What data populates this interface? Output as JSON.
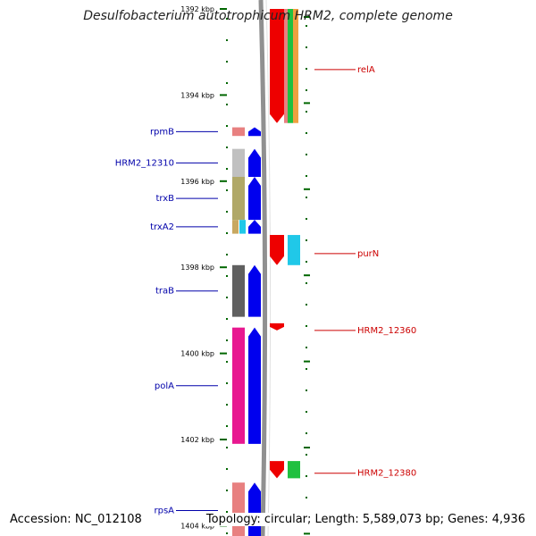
{
  "title": "Desulfobacterium autotrophicum HRM2, complete genome",
  "accession": "Accession: NC_012108",
  "topology": "Topology: circular; Length: 5,589,073 bp; Genes: 4,936",
  "ticks": [
    {
      "label": "1392 kbp",
      "kbp": 1392
    },
    {
      "label": "1394 kbp",
      "kbp": 1394
    },
    {
      "label": "1396 kbp",
      "kbp": 1396
    },
    {
      "label": "1398 kbp",
      "kbp": 1398
    },
    {
      "label": "1400 kbp",
      "kbp": 1400
    },
    {
      "label": "1402 kbp",
      "kbp": 1402
    },
    {
      "label": "1404 kbp",
      "kbp": 1404
    }
  ],
  "left_genes": [
    {
      "name": "rpmB",
      "start": 1394.75,
      "end": 1394.95,
      "box_color": "#e88080",
      "arrow_color": "#0000ee"
    },
    {
      "name": "HRM2_12310",
      "start": 1395.25,
      "end": 1395.9,
      "box_color": "#c0c0c0",
      "arrow_color": "#0000ee"
    },
    {
      "name": "trxB",
      "start": 1395.9,
      "end": 1396.9,
      "box_color": "#b0a868",
      "arrow_color": "#0000ee"
    },
    {
      "name": "trxA2",
      "start": 1396.9,
      "end": 1397.22,
      "box_color": "#c8a860",
      "box2_color": "#20c8e8",
      "arrow_color": "#0000ee"
    },
    {
      "name": "traB",
      "start": 1397.95,
      "end": 1399.15,
      "box_color": "#606060",
      "arrow_color": "#0000ee"
    },
    {
      "name": "polA",
      "start": 1399.4,
      "end": 1402.1,
      "box_color": "#e81890",
      "arrow_color": "#0000ee"
    },
    {
      "name": "rpsA",
      "start": 1403.0,
      "end": 1404.3,
      "box_color": "#e88080",
      "arrow_color": "#0000ee"
    }
  ],
  "right_genes": [
    {
      "name": "relA",
      "start": 1392.0,
      "end": 1394.65,
      "arrow_color": "#ee0000",
      "box_color": "#e88080",
      "box2_color": "#20c040",
      "box3_color": "#f0a040"
    },
    {
      "name": "purN",
      "start": 1397.25,
      "end": 1397.95,
      "arrow_color": "#ee0000",
      "box_color": "#20c8e8"
    },
    {
      "name": "HRM2_12360",
      "start": 1399.3,
      "end": 1399.45,
      "arrow_color": "#ee0000"
    },
    {
      "name": "HRM2_12380",
      "start": 1402.5,
      "end": 1402.9,
      "arrow_color": "#ee0000",
      "box_color": "#20c040"
    }
  ],
  "colors": {
    "backbone": "#909090",
    "left_label": "#0000aa",
    "right_label": "#cc0000",
    "tick": "#006600"
  }
}
